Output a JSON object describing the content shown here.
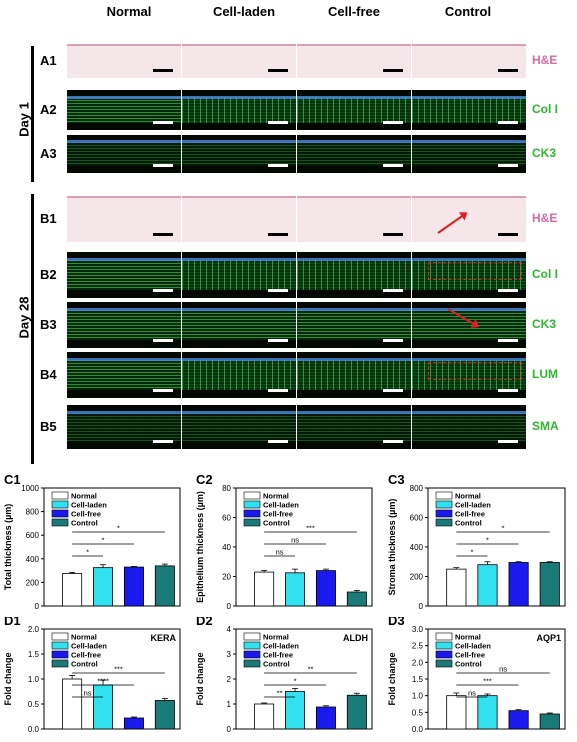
{
  "columns": [
    "Normal",
    "Cell-laden",
    "Cell-free",
    "Control"
  ],
  "days": {
    "day1": "Day 1",
    "day28": "Day 28"
  },
  "rows": [
    {
      "id": "A1",
      "stain": "H&E",
      "type": "he",
      "stain_color": "#d86aa8"
    },
    {
      "id": "A2",
      "stain": "Col I",
      "type": "fluo",
      "stain_color": "#2db82d"
    },
    {
      "id": "A3",
      "stain": "CK3",
      "type": "fluo",
      "stain_color": "#2db82d"
    },
    {
      "id": "B1",
      "stain": "H&E",
      "type": "he",
      "stain_color": "#d86aa8"
    },
    {
      "id": "B2",
      "stain": "Col I",
      "type": "fluo",
      "stain_color": "#2db82d"
    },
    {
      "id": "B3",
      "stain": "CK3",
      "type": "fluo",
      "stain_color": "#2db82d"
    },
    {
      "id": "B4",
      "stain": "LUM",
      "type": "fluo",
      "stain_color": "#2db82d"
    },
    {
      "id": "B5",
      "stain": "SMA",
      "type": "fluo",
      "stain_color": "#2db82d"
    }
  ],
  "series_colors": [
    "#ffffff",
    "#33e0f0",
    "#1a1aee",
    "#1a7a78"
  ],
  "chart_data": [
    {
      "id": "C1",
      "type": "bar",
      "categories": [
        "Normal",
        "Cell-laden",
        "Cell-free",
        "Control"
      ],
      "values": [
        275,
        325,
        330,
        340
      ],
      "errors": [
        10,
        25,
        5,
        15
      ],
      "ylabel": "Total thickness (µm)",
      "ylim": [
        0,
        1000
      ],
      "yticks": [
        "0",
        "200",
        "400",
        "600",
        "800",
        "1000"
      ],
      "significance": [
        "*",
        "*",
        "*"
      ],
      "corner_label": ""
    },
    {
      "id": "C2",
      "type": "bar",
      "categories": [
        "Normal",
        "Cell-laden",
        "Cell-free",
        "Control"
      ],
      "values": [
        23,
        22.5,
        24,
        9.5
      ],
      "errors": [
        1,
        2.5,
        1,
        1
      ],
      "ylabel": "Epithelium thickness (µm)",
      "ylim": [
        0,
        80
      ],
      "yticks": [
        "0",
        "20",
        "40",
        "60",
        "80"
      ],
      "significance": [
        "ns",
        "ns",
        "***"
      ],
      "corner_label": ""
    },
    {
      "id": "C3",
      "type": "bar",
      "categories": [
        "Normal",
        "Cell-laden",
        "Cell-free",
        "Control"
      ],
      "values": [
        250,
        280,
        295,
        295
      ],
      "errors": [
        10,
        20,
        5,
        5
      ],
      "ylabel": "Stroma thickness (µm)",
      "ylim": [
        0,
        800
      ],
      "yticks": [
        "0",
        "200",
        "400",
        "600",
        "800"
      ],
      "significance": [
        "*",
        "*",
        "*"
      ],
      "corner_label": ""
    },
    {
      "id": "D1",
      "type": "bar",
      "categories": [
        "Normal",
        "Cell-laden",
        "Cell-free",
        "Control"
      ],
      "values": [
        1.0,
        0.88,
        0.22,
        0.57
      ],
      "errors": [
        0.07,
        0.1,
        0.02,
        0.04
      ],
      "ylabel": "Fold change",
      "ylim": [
        0,
        2.0
      ],
      "yticks": [
        "0.0",
        "0.5",
        "1.0",
        "1.5",
        "2.0"
      ],
      "significance": [
        "ns",
        "****",
        "***"
      ],
      "corner_label": "KERA"
    },
    {
      "id": "D2",
      "type": "bar",
      "categories": [
        "Normal",
        "Cell-laden",
        "Cell-free",
        "Control"
      ],
      "values": [
        1.0,
        1.5,
        0.88,
        1.35
      ],
      "errors": [
        0.04,
        0.12,
        0.05,
        0.08
      ],
      "ylabel": "Fold change",
      "ylim": [
        0,
        4
      ],
      "yticks": [
        "0",
        "1",
        "2",
        "3",
        "4"
      ],
      "significance": [
        "**",
        "*",
        "**"
      ],
      "corner_label": "ALDH"
    },
    {
      "id": "D3",
      "type": "bar",
      "categories": [
        "Normal",
        "Cell-laden",
        "Cell-free",
        "Control"
      ],
      "values": [
        1.0,
        1.0,
        0.55,
        0.45
      ],
      "errors": [
        0.08,
        0.05,
        0.03,
        0.03
      ],
      "ylabel": "Fold change",
      "ylim": [
        0,
        3.0
      ],
      "yticks": [
        "0.0",
        "0.5",
        "1.0",
        "1.5",
        "2.0",
        "2.5",
        "3.0"
      ],
      "significance": [
        "ns",
        "***",
        "ns"
      ],
      "corner_label": "AQP1"
    }
  ]
}
